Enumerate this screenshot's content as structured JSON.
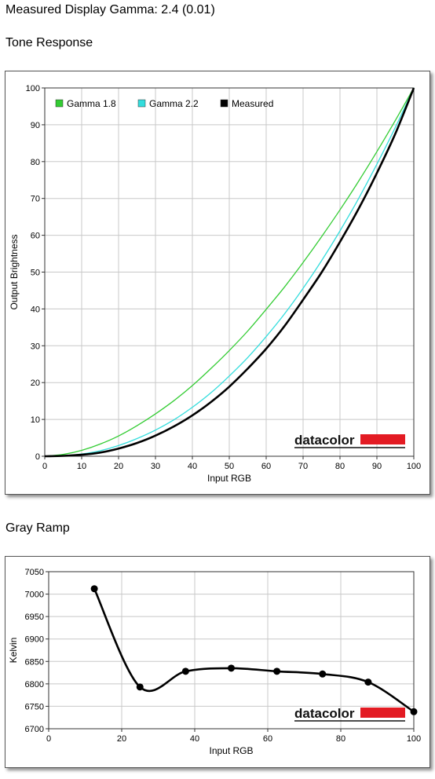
{
  "page_title": "Measured Display Gamma: 2.4 (0.01)",
  "sections": {
    "tone": "Tone Response",
    "gray": "Gray Ramp"
  },
  "brand": {
    "logo_text": "datacolor",
    "bar_color": "#e31b23"
  },
  "chart_data": [
    {
      "type": "line",
      "title": "",
      "xlabel": "Input RGB",
      "ylabel": "Output Brightness",
      "xlim": [
        0,
        100
      ],
      "ylim": [
        0,
        100
      ],
      "xticks": [
        0,
        10,
        20,
        30,
        40,
        50,
        60,
        70,
        80,
        90,
        100
      ],
      "yticks": [
        0,
        10,
        20,
        30,
        40,
        50,
        60,
        70,
        80,
        90,
        100
      ],
      "grid": true,
      "legend_position": "top-left",
      "x": [
        0,
        5,
        10,
        15,
        20,
        25,
        30,
        35,
        40,
        45,
        50,
        55,
        60,
        65,
        70,
        75,
        80,
        85,
        90,
        95,
        100
      ],
      "series": [
        {
          "name": "Gamma 1.8",
          "color": "#33cc33",
          "values": [
            0,
            0.5,
            1.6,
            3.3,
            5.5,
            8.3,
            11.5,
            15.1,
            19.2,
            23.8,
            28.7,
            34.0,
            39.9,
            46.0,
            52.6,
            59.6,
            66.9,
            74.6,
            82.7,
            91.2,
            100
          ]
        },
        {
          "name": "Gamma 2.2",
          "color": "#33dddd",
          "values": [
            0,
            0.1,
            0.6,
            1.5,
            2.9,
            4.8,
            7.1,
            9.9,
            13.3,
            17.2,
            21.8,
            26.8,
            32.5,
            38.7,
            45.6,
            53.1,
            61.2,
            69.9,
            79.3,
            89.3,
            100
          ]
        },
        {
          "name": "Measured",
          "color": "#000000",
          "values": [
            0,
            0.1,
            0.4,
            1.0,
            2.1,
            3.6,
            5.6,
            8.1,
            11.1,
            14.7,
            18.9,
            23.8,
            29.2,
            35.4,
            42.5,
            49.9,
            58.2,
            67.1,
            76.9,
            87.6,
            100
          ]
        }
      ]
    },
    {
      "type": "line",
      "title": "",
      "xlabel": "Input RGB",
      "ylabel": "Kelvin",
      "xlim": [
        0,
        100
      ],
      "ylim": [
        6700,
        7050
      ],
      "xticks": [
        0,
        20,
        40,
        60,
        80,
        100
      ],
      "yticks": [
        6700,
        6750,
        6800,
        6850,
        6900,
        6950,
        7000,
        7050
      ],
      "grid": true,
      "series": [
        {
          "name": "",
          "color": "#000000",
          "x": [
            12.5,
            25,
            37.5,
            50,
            62.5,
            75,
            87.5,
            100
          ],
          "values": [
            7012,
            6793,
            6828,
            6835,
            6828,
            6822,
            6804,
            6738
          ]
        }
      ]
    }
  ]
}
